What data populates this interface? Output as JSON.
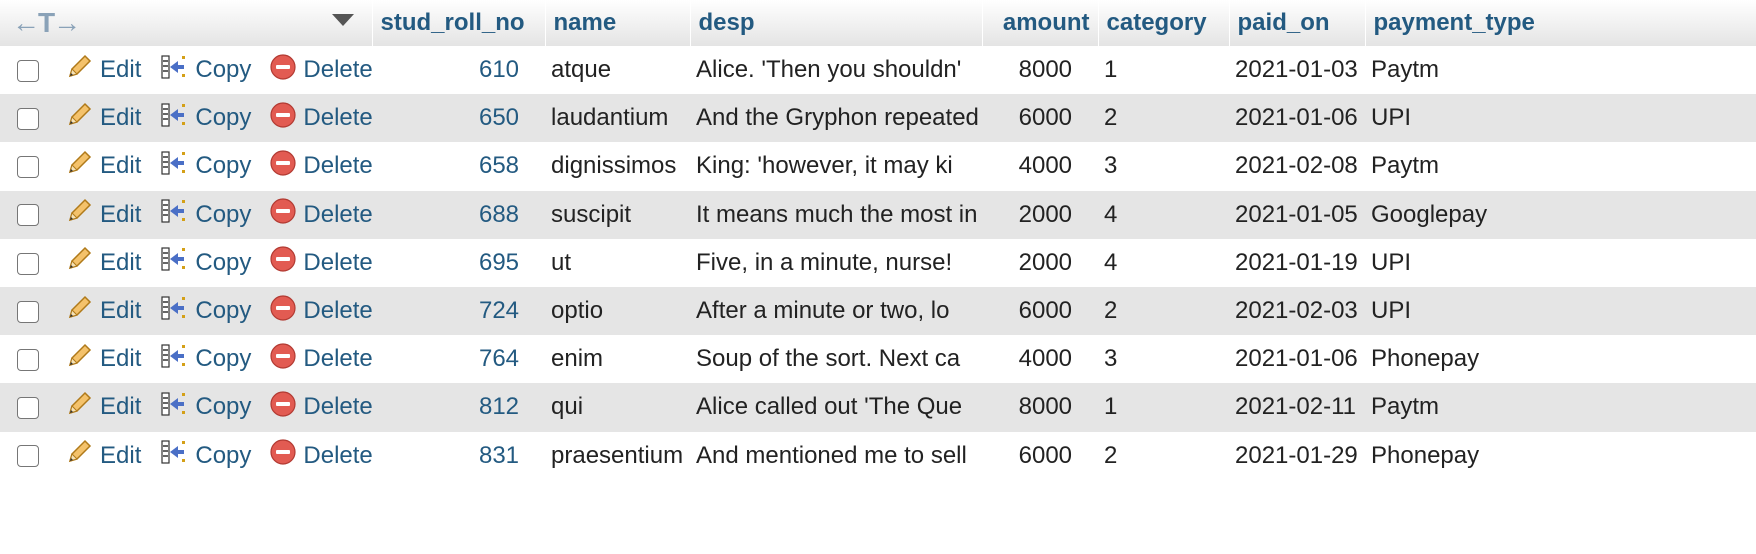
{
  "header": {
    "nav_arrows": "←T→",
    "columns": [
      "stud_roll_no",
      "name",
      "desp",
      "amount",
      "category",
      "paid_on",
      "payment_type"
    ]
  },
  "actions": {
    "edit_label": "Edit",
    "copy_label": "Copy",
    "delete_label": "Delete"
  },
  "icons": {
    "edit": "pencil-icon",
    "copy": "copy-icon",
    "delete": "delete-icon",
    "sort": "sort-caret-icon"
  },
  "colors": {
    "link": "#235a81",
    "row_alt": "#e5e5e5",
    "delete_red": "#d9534f"
  },
  "rows": [
    {
      "stud_roll_no": "610",
      "name": "atque",
      "desp": "Alice. 'Then you shouldn'",
      "amount": "8000",
      "category": "1",
      "paid_on": "2021-01-03",
      "payment_type": "Paytm"
    },
    {
      "stud_roll_no": "650",
      "name": "laudantium",
      "desp": "And the Gryphon repeated",
      "amount": "6000",
      "category": "2",
      "paid_on": "2021-01-06",
      "payment_type": "UPI"
    },
    {
      "stud_roll_no": "658",
      "name": "dignissimos",
      "desp": "King: 'however, it may ki",
      "amount": "4000",
      "category": "3",
      "paid_on": "2021-02-08",
      "payment_type": "Paytm"
    },
    {
      "stud_roll_no": "688",
      "name": "suscipit",
      "desp": "It means much the most in",
      "amount": "2000",
      "category": "4",
      "paid_on": "2021-01-05",
      "payment_type": "Googlepay"
    },
    {
      "stud_roll_no": "695",
      "name": "ut",
      "desp": "Five, in a minute, nurse!",
      "amount": "2000",
      "category": "4",
      "paid_on": "2021-01-19",
      "payment_type": "UPI"
    },
    {
      "stud_roll_no": "724",
      "name": "optio",
      "desp": "After a minute or two, lo",
      "amount": "6000",
      "category": "2",
      "paid_on": "2021-02-03",
      "payment_type": "UPI"
    },
    {
      "stud_roll_no": "764",
      "name": "enim",
      "desp": "Soup of the sort. Next ca",
      "amount": "4000",
      "category": "3",
      "paid_on": "2021-01-06",
      "payment_type": "Phonepay"
    },
    {
      "stud_roll_no": "812",
      "name": "qui",
      "desp": "Alice called out 'The Que",
      "amount": "8000",
      "category": "1",
      "paid_on": "2021-02-11",
      "payment_type": "Paytm"
    },
    {
      "stud_roll_no": "831",
      "name": "praesentium",
      "desp": "And mentioned me to sell",
      "amount": "6000",
      "category": "2",
      "paid_on": "2021-01-29",
      "payment_type": "Phonepay"
    }
  ]
}
